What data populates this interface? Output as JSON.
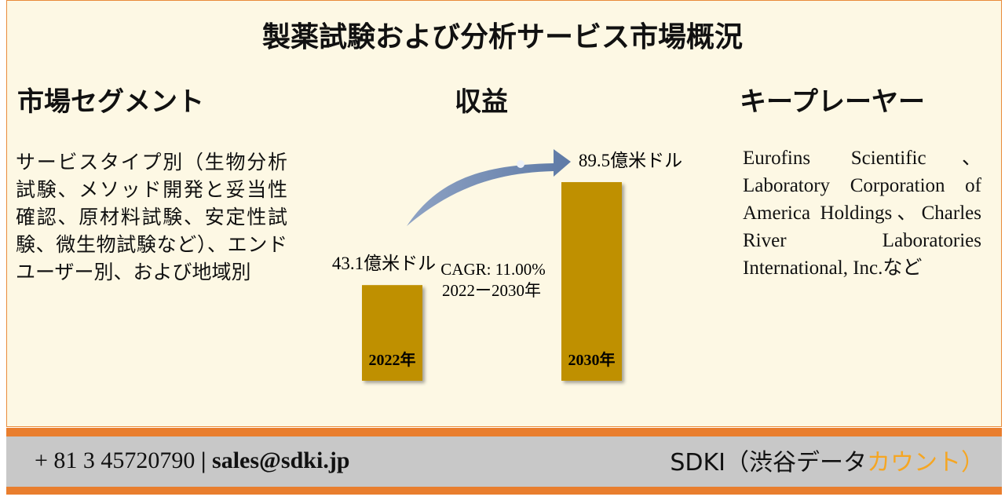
{
  "title": "製薬試験および分析サービス市場概況",
  "segment": {
    "heading": "市場セグメント",
    "text": "サービスタイプ別（生物分析試験、メソッド開発と妥当性確認、原材料試験、安定性試験、微生物試験など）、エンドユーザー別、および地域別"
  },
  "revenue": {
    "heading": "収益",
    "bars": [
      {
        "year": "2022年",
        "value": 43.1,
        "value_label": "43.1億米ドル"
      },
      {
        "year": "2030年",
        "value": 89.5,
        "value_label": "89.5億米ドル"
      }
    ],
    "color": "#bf9000",
    "cagr": "CAGR: 11.00%",
    "period": "2022ー2030年"
  },
  "players": {
    "heading": "キープレーヤー",
    "text": "Eurofins Scientific、Laboratory Corporation of America Holdings、Charles River Laboratories International, Inc.など"
  },
  "footer": {
    "phone": "+ 81 3 45720790",
    "separator": "|",
    "email": "sales@sdki.jp",
    "brand_main": "SDKI（渋谷データ",
    "brand_accent": "カウント）"
  }
}
